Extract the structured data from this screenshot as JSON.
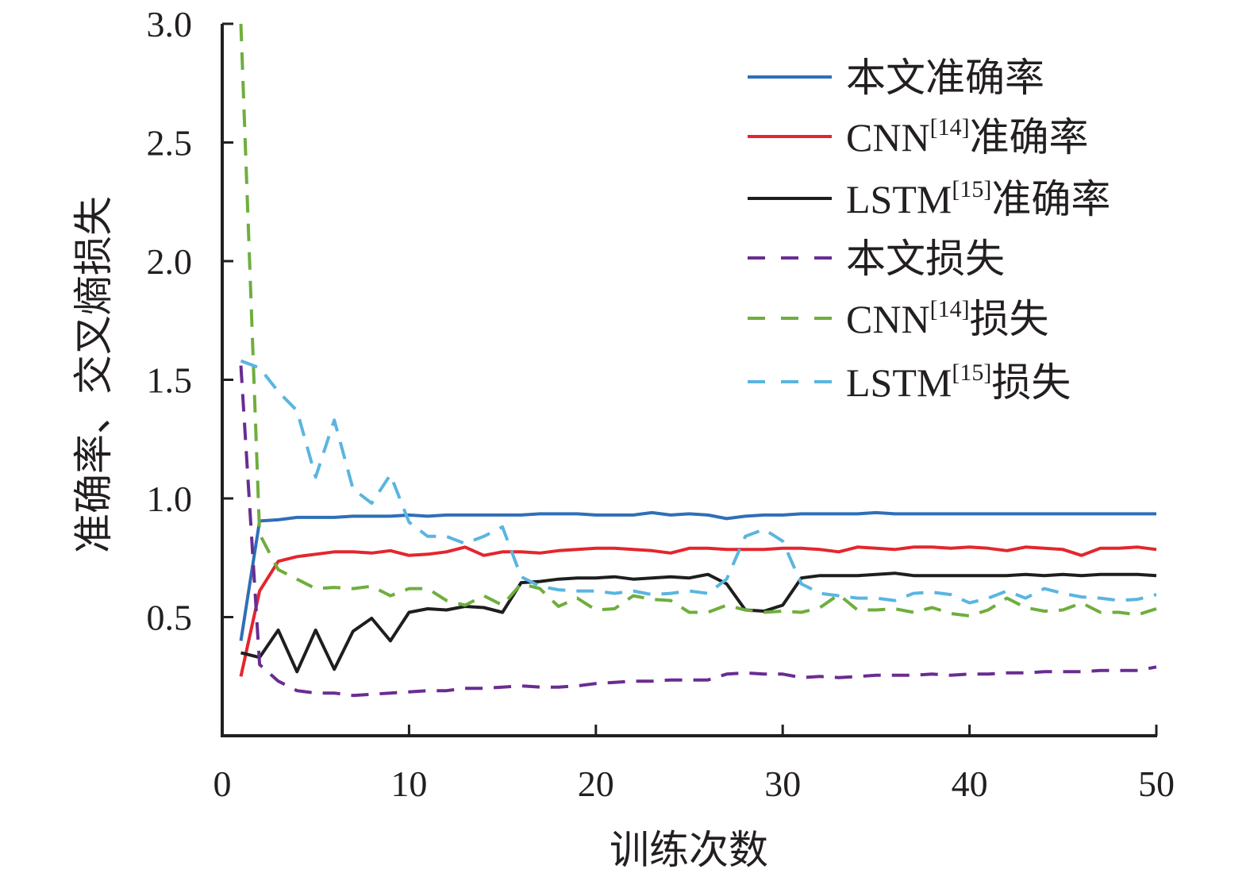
{
  "chart_data": {
    "type": "line",
    "xlabel": "训练次数",
    "ylabel": "准确率、交叉熵损失",
    "xlim": [
      0,
      50
    ],
    "ylim": [
      0,
      3.0
    ],
    "xticks": [
      "0",
      "10",
      "20",
      "30",
      "40",
      "50"
    ],
    "yticks": [
      "0.5",
      "1.0",
      "1.5",
      "2.0",
      "2.5",
      "3.0"
    ],
    "grid": false,
    "legend_position": "top-right",
    "x": [
      1,
      2,
      3,
      4,
      5,
      6,
      7,
      8,
      9,
      10,
      11,
      12,
      13,
      14,
      15,
      16,
      17,
      18,
      19,
      20,
      21,
      22,
      23,
      24,
      25,
      26,
      27,
      28,
      29,
      30,
      31,
      32,
      33,
      34,
      35,
      36,
      37,
      38,
      39,
      40,
      41,
      42,
      43,
      44,
      45,
      46,
      47,
      48,
      49,
      50
    ],
    "series": [
      {
        "name": "本文准确率",
        "color": "#2e6fb7",
        "line_style": "solid",
        "values": [
          0.4,
          0.905,
          0.91,
          0.92,
          0.92,
          0.92,
          0.925,
          0.925,
          0.925,
          0.93,
          0.925,
          0.93,
          0.93,
          0.93,
          0.93,
          0.93,
          0.935,
          0.935,
          0.935,
          0.93,
          0.93,
          0.93,
          0.94,
          0.93,
          0.935,
          0.93,
          0.915,
          0.925,
          0.93,
          0.93,
          0.935,
          0.935,
          0.935,
          0.935,
          0.94,
          0.935,
          0.935,
          0.935,
          0.935,
          0.935,
          0.935,
          0.935,
          0.935,
          0.935,
          0.935,
          0.935,
          0.935,
          0.935,
          0.935,
          0.935
        ]
      },
      {
        "name": "CNN[14]准确率",
        "color": "#e3262d",
        "line_style": "solid",
        "values": [
          0.25,
          0.61,
          0.735,
          0.755,
          0.765,
          0.775,
          0.775,
          0.77,
          0.78,
          0.76,
          0.765,
          0.775,
          0.795,
          0.76,
          0.775,
          0.775,
          0.77,
          0.78,
          0.785,
          0.79,
          0.79,
          0.785,
          0.78,
          0.77,
          0.79,
          0.79,
          0.785,
          0.785,
          0.785,
          0.79,
          0.79,
          0.785,
          0.775,
          0.795,
          0.79,
          0.785,
          0.795,
          0.795,
          0.79,
          0.795,
          0.79,
          0.78,
          0.795,
          0.79,
          0.785,
          0.76,
          0.79,
          0.79,
          0.795,
          0.785
        ]
      },
      {
        "name": "LSTM[15]准确率",
        "color": "#1e1e1e",
        "line_style": "solid",
        "values": [
          0.35,
          0.33,
          0.445,
          0.27,
          0.445,
          0.28,
          0.44,
          0.495,
          0.4,
          0.52,
          0.535,
          0.53,
          0.545,
          0.54,
          0.52,
          0.645,
          0.65,
          0.66,
          0.665,
          0.665,
          0.67,
          0.66,
          0.665,
          0.67,
          0.665,
          0.68,
          0.64,
          0.53,
          0.525,
          0.55,
          0.665,
          0.675,
          0.675,
          0.675,
          0.68,
          0.685,
          0.675,
          0.675,
          0.675,
          0.675,
          0.675,
          0.675,
          0.68,
          0.675,
          0.68,
          0.675,
          0.68,
          0.68,
          0.68,
          0.675
        ]
      },
      {
        "name": "本文损失",
        "color": "#6a2c91",
        "line_style": "dashed",
        "values": [
          1.56,
          0.3,
          0.23,
          0.19,
          0.18,
          0.18,
          0.17,
          0.175,
          0.18,
          0.185,
          0.19,
          0.19,
          0.2,
          0.2,
          0.205,
          0.21,
          0.205,
          0.205,
          0.21,
          0.22,
          0.225,
          0.23,
          0.23,
          0.235,
          0.235,
          0.235,
          0.26,
          0.265,
          0.26,
          0.26,
          0.245,
          0.25,
          0.245,
          0.25,
          0.255,
          0.255,
          0.255,
          0.26,
          0.255,
          0.26,
          0.26,
          0.265,
          0.265,
          0.27,
          0.27,
          0.27,
          0.275,
          0.275,
          0.275,
          0.29
        ]
      },
      {
        "name": "CNN[14]损失",
        "color": "#6fae3d",
        "line_style": "dashed",
        "values": [
          3.0,
          0.85,
          0.7,
          0.66,
          0.62,
          0.625,
          0.62,
          0.63,
          0.59,
          0.62,
          0.62,
          0.57,
          0.55,
          0.59,
          0.55,
          0.64,
          0.62,
          0.545,
          0.58,
          0.53,
          0.535,
          0.59,
          0.575,
          0.57,
          0.52,
          0.52,
          0.55,
          0.53,
          0.52,
          0.525,
          0.52,
          0.54,
          0.595,
          0.53,
          0.53,
          0.535,
          0.52,
          0.54,
          0.515,
          0.505,
          0.53,
          0.58,
          0.54,
          0.525,
          0.53,
          0.56,
          0.52,
          0.52,
          0.51,
          0.535
        ]
      },
      {
        "name": "LSTM[15]损失",
        "color": "#5ab5e0",
        "line_style": "dashed",
        "values": [
          1.58,
          1.55,
          1.45,
          1.37,
          1.09,
          1.33,
          1.04,
          0.98,
          1.1,
          0.9,
          0.84,
          0.84,
          0.81,
          0.84,
          0.88,
          0.67,
          0.63,
          0.615,
          0.61,
          0.61,
          0.6,
          0.61,
          0.595,
          0.6,
          0.61,
          0.6,
          0.66,
          0.84,
          0.87,
          0.82,
          0.64,
          0.6,
          0.59,
          0.58,
          0.58,
          0.57,
          0.6,
          0.605,
          0.595,
          0.56,
          0.58,
          0.61,
          0.58,
          0.62,
          0.6,
          0.585,
          0.58,
          0.57,
          0.575,
          0.595
        ]
      }
    ]
  }
}
